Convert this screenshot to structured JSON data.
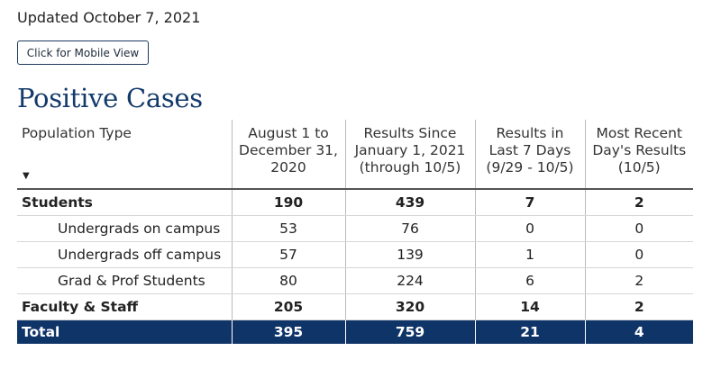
{
  "updated_text": "Updated October 7, 2021",
  "mobile_button_label": "Click for Mobile View",
  "heading": "Positive Cases",
  "table": {
    "headers": {
      "population": "Population Type",
      "col1": [
        "August 1 to",
        "December 31,",
        "2020"
      ],
      "col2": [
        "Results Since",
        "January 1, 2021",
        "(through 10/5)"
      ],
      "col3": [
        "Results in",
        "Last 7 Days",
        "(9/29 - 10/5)"
      ],
      "col4": [
        "Most Recent",
        "Day's Results",
        "(10/5)"
      ]
    },
    "sort_icon": "sort-down-icon",
    "rows": [
      {
        "label": "Students",
        "values": [
          "190",
          "439",
          "7",
          "2"
        ]
      },
      {
        "label": "Undergrads on campus",
        "values": [
          "53",
          "76",
          "0",
          "0"
        ]
      },
      {
        "label": "Undergrads off campus",
        "values": [
          "57",
          "139",
          "1",
          "0"
        ]
      },
      {
        "label": "Grad & Prof Students",
        "values": [
          "80",
          "224",
          "6",
          "2"
        ]
      },
      {
        "label": "Faculty & Staff",
        "values": [
          "205",
          "320",
          "14",
          "2"
        ]
      }
    ],
    "total": {
      "label": "Total",
      "values": [
        "395",
        "759",
        "21",
        "4"
      ]
    }
  },
  "colors": {
    "heading": "#123a6b",
    "total_row_bg": "#0f3468",
    "total_row_text": "#ffffff"
  }
}
